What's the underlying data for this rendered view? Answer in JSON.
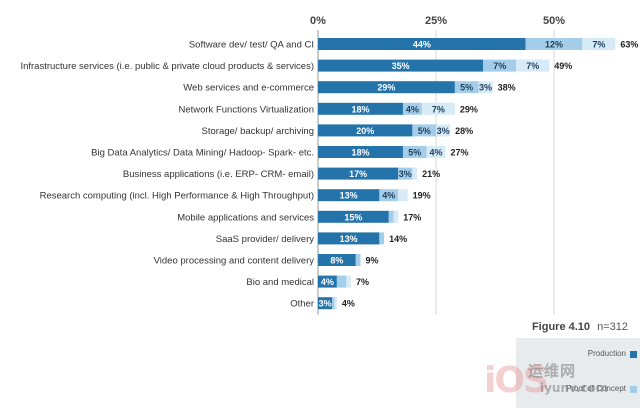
{
  "chart_data": {
    "type": "bar",
    "orientation": "horizontal",
    "stacked": true,
    "categories": [
      "Software dev/ test/ QA and CI",
      "Infrastructure services (i.e. public & private cloud products & services)",
      "Web services and e-commerce",
      "Network Functions Virtualization",
      "Storage/  backup/ archiving",
      "Big Data Analytics/ Data Mining/ Hadoop- Spark- etc.",
      "Business applications (i.e. ERP- CRM- email)",
      "Research computing (incl. High Performance & High Throughput)",
      "Mobile applications and services",
      "SaaS provider/ delivery",
      "Video processing and content delivery",
      "Bio and medical",
      "Other"
    ],
    "series": [
      {
        "name": "Production",
        "color": "#2474ab",
        "values": [
          44,
          35,
          29,
          18,
          20,
          18,
          17,
          13,
          15,
          13,
          8,
          4,
          3
        ],
        "labels": [
          "44%",
          "35%",
          "29%",
          "18%",
          "20%",
          "18%",
          "17%",
          "13%",
          "15%",
          "13%",
          "8%",
          "4%",
          "3%"
        ]
      },
      {
        "name": "Proof of Concept",
        "color": "#a3cde9",
        "values": [
          12,
          7,
          5,
          4,
          5,
          5,
          3,
          4,
          1,
          1,
          1,
          2,
          0.5
        ],
        "labels": [
          "12%",
          "7%",
          "5%",
          "4%",
          "5%",
          "5%",
          "3%",
          "4%",
          "",
          "",
          "",
          "",
          ""
        ]
      },
      {
        "name": "",
        "color": "#d6eaf7",
        "values": [
          7,
          7,
          3,
          7,
          3,
          4,
          1,
          2,
          1,
          0,
          0,
          1,
          0.5
        ],
        "labels": [
          "7%",
          "7%",
          "3%",
          "7%",
          "3%",
          "4%",
          "",
          "",
          "",
          "",
          "",
          "",
          ""
        ]
      }
    ],
    "totals": [
      "63%",
      "49%",
      "38%",
      "29%",
      "28%",
      "27%",
      "21%",
      "19%",
      "17%",
      "14%",
      "9%",
      "7%",
      "4%"
    ],
    "x_ticks": [
      "0%",
      "25%",
      "50%"
    ],
    "xlim": [
      0,
      63
    ],
    "grid": true,
    "legend_position": "bottom-right"
  },
  "figure": {
    "label": "Figure 4.10",
    "note": "n=312"
  },
  "legend": [
    "Production",
    "Proof of Concept"
  ],
  "watermark": {
    "logo": "iOS",
    "top": "运维网",
    "bottom": "iyunv.com"
  }
}
